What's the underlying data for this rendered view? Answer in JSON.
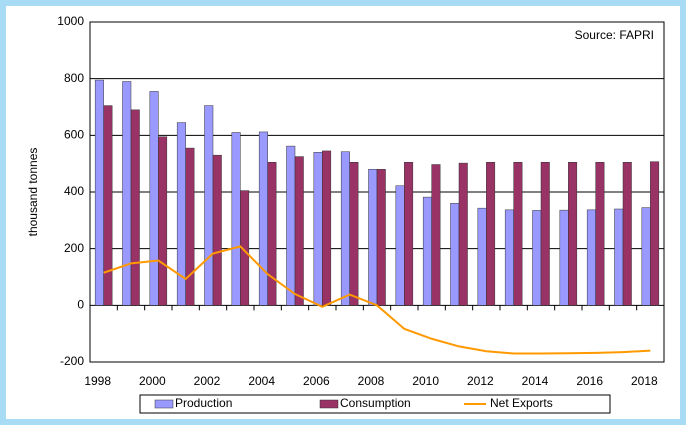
{
  "chart_data": {
    "type": "bar-line",
    "annotation": "Source: FAPRI",
    "y_label": "thousand tonnes",
    "categories": [
      "1998",
      null,
      "2000",
      null,
      "2002",
      null,
      "2004",
      null,
      "2006",
      null,
      "2008",
      null,
      "2010",
      null,
      "2012",
      null,
      "2014",
      null,
      "2016",
      null,
      "2018"
    ],
    "series": [
      {
        "name": "Production",
        "color": "#9999ff",
        "kind": "bar",
        "values": [
          795,
          790,
          755,
          645,
          705,
          610,
          612,
          562,
          540,
          542,
          480,
          422,
          382,
          360,
          343,
          337,
          335,
          336,
          337,
          340,
          345
        ]
      },
      {
        "name": "Consumption",
        "color": "#993366",
        "kind": "bar",
        "values": [
          705,
          690,
          595,
          555,
          530,
          405,
          505,
          525,
          545,
          505,
          480,
          505,
          497,
          502,
          505,
          505,
          505,
          505,
          505,
          505,
          507
        ]
      },
      {
        "name": "Net Exports",
        "color": "#ff9900",
        "kind": "line",
        "values": [
          115,
          148,
          158,
          93,
          183,
          208,
          110,
          40,
          -5,
          38,
          0,
          -83,
          -118,
          -145,
          -162,
          -170,
          -170,
          -169,
          -168,
          -165,
          -160
        ]
      }
    ],
    "ylim": [
      -200,
      1000
    ],
    "yticks": [
      -200,
      0,
      200,
      400,
      600,
      800,
      1000
    ],
    "grid": true,
    "legend": "bottom"
  }
}
